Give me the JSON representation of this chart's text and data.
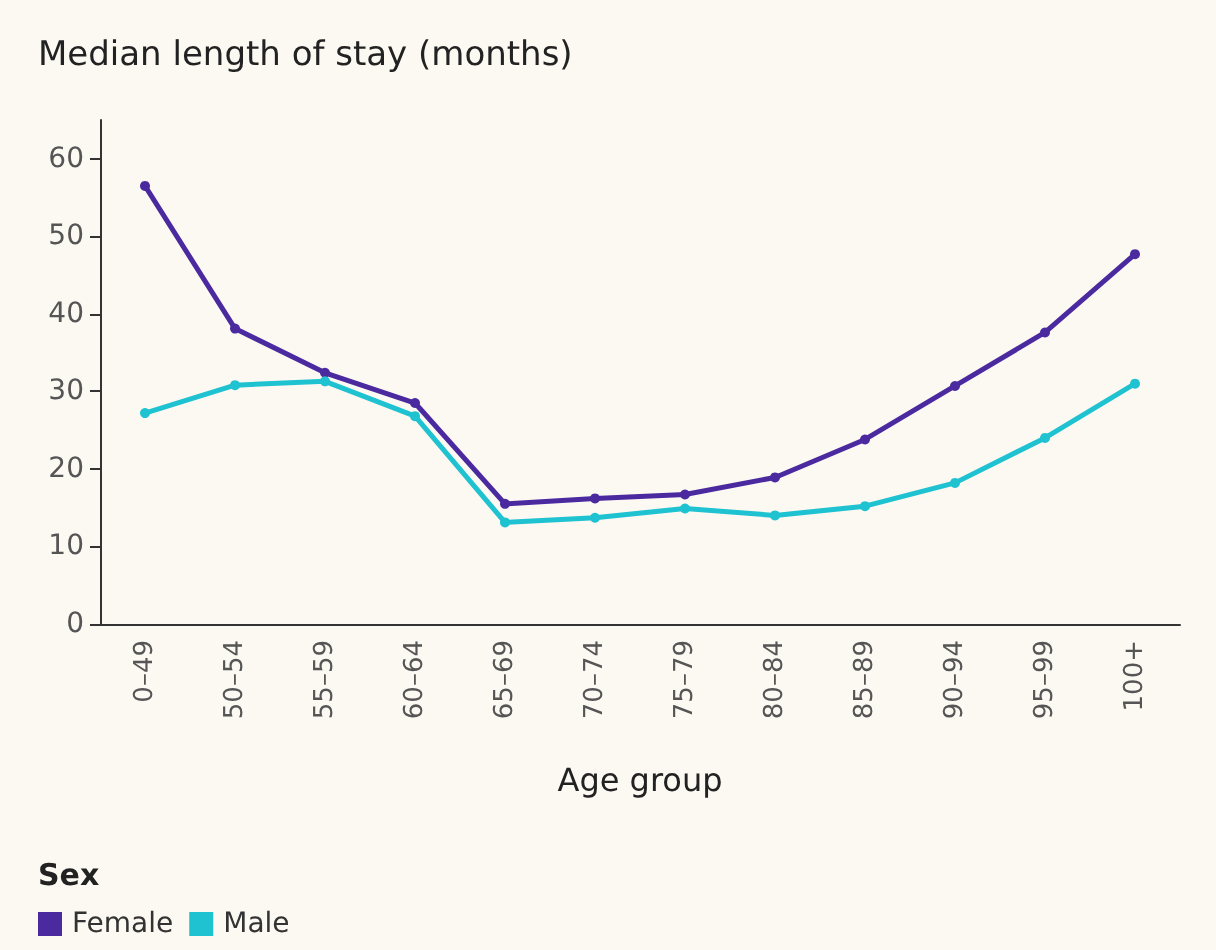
{
  "chart_data": {
    "type": "line",
    "title": "Median length of stay (months)",
    "xlabel": "Age group",
    "legend_title": "Sex",
    "categories": [
      "0–49",
      "50–54",
      "55–59",
      "60–64",
      "65–69",
      "70–74",
      "75–79",
      "80–84",
      "85–89",
      "90–94",
      "95–99",
      "100+"
    ],
    "series": [
      {
        "name": "Female",
        "color": "#4b2aa0",
        "values": [
          56.5,
          38.1,
          32.4,
          28.5,
          15.5,
          16.2,
          16.7,
          18.9,
          23.8,
          30.7,
          37.6,
          47.7
        ]
      },
      {
        "name": "Male",
        "color": "#1fc2d0",
        "values": [
          27.2,
          30.8,
          31.3,
          26.8,
          13.1,
          13.7,
          14.9,
          14.0,
          15.2,
          18.2,
          24.0,
          31.0
        ]
      }
    ],
    "ylim": [
      0,
      65
    ],
    "yticks": [
      0,
      10,
      20,
      30,
      40,
      50,
      60
    ],
    "grid": false,
    "legend": "bottom left",
    "marker": "circle",
    "line_style": "solid"
  }
}
